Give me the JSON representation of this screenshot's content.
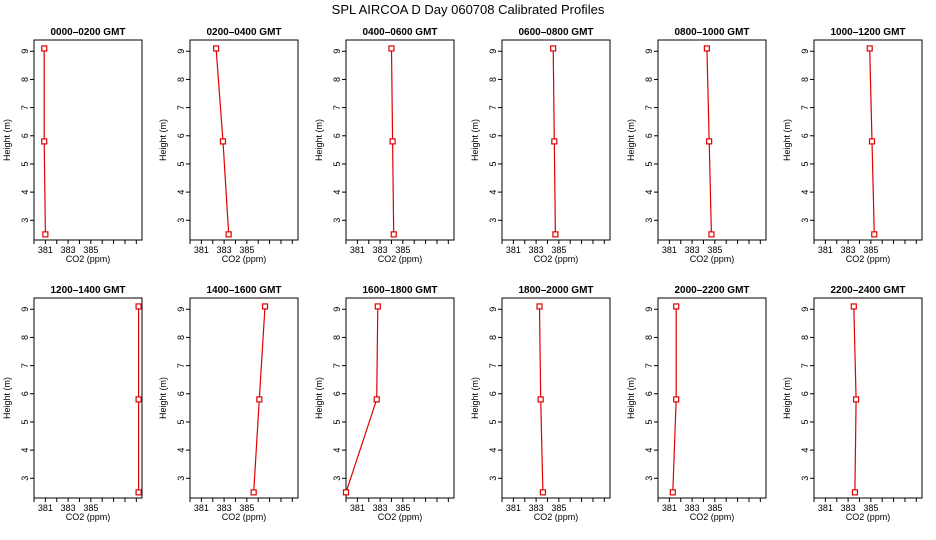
{
  "title": "SPL AIRCOA D  Day 060708  Calibrated Profiles",
  "colors": {
    "series": "#e00000",
    "axis": "#000000",
    "background": "#ffffff"
  },
  "chart_data": [
    {
      "type": "line",
      "title": "0000–0200 GMT",
      "xlabel": "CO2 (ppm)",
      "ylabel": "Height (m)",
      "xlim": [
        380,
        389.5
      ],
      "ylim": [
        2.3,
        9.4
      ],
      "xticks": [
        381,
        383,
        385
      ],
      "yticks": [
        3,
        4,
        5,
        6,
        7,
        8,
        9
      ],
      "grid": false,
      "series": [
        {
          "x": [
            380.9,
            380.9,
            381.0
          ],
          "y": [
            9.1,
            5.8,
            2.5
          ]
        }
      ]
    },
    {
      "type": "line",
      "title": "0200–0400 GMT",
      "xlabel": "CO2 (ppm)",
      "ylabel": "Height (m)",
      "xlim": [
        380,
        389.5
      ],
      "ylim": [
        2.3,
        9.4
      ],
      "xticks": [
        381,
        383,
        385
      ],
      "yticks": [
        3,
        4,
        5,
        6,
        7,
        8,
        9
      ],
      "grid": false,
      "series": [
        {
          "x": [
            382.3,
            382.9,
            383.4
          ],
          "y": [
            9.1,
            5.8,
            2.5
          ]
        }
      ]
    },
    {
      "type": "line",
      "title": "0400–0600 GMT",
      "xlabel": "CO2 (ppm)",
      "ylabel": "Height (m)",
      "xlim": [
        380,
        389.5
      ],
      "ylim": [
        2.3,
        9.4
      ],
      "xticks": [
        381,
        383,
        385
      ],
      "yticks": [
        3,
        4,
        5,
        6,
        7,
        8,
        9
      ],
      "grid": false,
      "series": [
        {
          "x": [
            384.0,
            384.1,
            384.2
          ],
          "y": [
            9.1,
            5.8,
            2.5
          ]
        }
      ]
    },
    {
      "type": "line",
      "title": "0600–0800 GMT",
      "xlabel": "CO2 (ppm)",
      "ylabel": "Height (m)",
      "xlim": [
        380,
        389.5
      ],
      "ylim": [
        2.3,
        9.4
      ],
      "xticks": [
        381,
        383,
        385
      ],
      "yticks": [
        3,
        4,
        5,
        6,
        7,
        8,
        9
      ],
      "grid": false,
      "series": [
        {
          "x": [
            384.5,
            384.6,
            384.7
          ],
          "y": [
            9.1,
            5.8,
            2.5
          ]
        }
      ]
    },
    {
      "type": "line",
      "title": "0800–1000 GMT",
      "xlabel": "CO2 (ppm)",
      "ylabel": "Height (m)",
      "xlim": [
        380,
        389.5
      ],
      "ylim": [
        2.3,
        9.4
      ],
      "xticks": [
        381,
        383,
        385
      ],
      "yticks": [
        3,
        4,
        5,
        6,
        7,
        8,
        9
      ],
      "grid": false,
      "series": [
        {
          "x": [
            384.3,
            384.5,
            384.7
          ],
          "y": [
            9.1,
            5.8,
            2.5
          ]
        }
      ]
    },
    {
      "type": "line",
      "title": "1000–1200 GMT",
      "xlabel": "CO2 (ppm)",
      "ylabel": "Height (m)",
      "xlim": [
        380,
        389.5
      ],
      "ylim": [
        2.3,
        9.4
      ],
      "xticks": [
        381,
        383,
        385
      ],
      "yticks": [
        3,
        4,
        5,
        6,
        7,
        8,
        9
      ],
      "grid": false,
      "series": [
        {
          "x": [
            384.9,
            385.1,
            385.3
          ],
          "y": [
            9.1,
            5.8,
            2.5
          ]
        }
      ]
    },
    {
      "type": "line",
      "title": "1200–1400 GMT",
      "xlabel": "CO2 (ppm)",
      "ylabel": "Height (m)",
      "xlim": [
        380,
        389.5
      ],
      "ylim": [
        2.3,
        9.4
      ],
      "xticks": [
        381,
        383,
        385
      ],
      "yticks": [
        3,
        4,
        5,
        6,
        7,
        8,
        9
      ],
      "grid": false,
      "series": [
        {
          "x": [
            389.2,
            389.2,
            389.2
          ],
          "y": [
            9.1,
            5.8,
            2.5
          ]
        }
      ]
    },
    {
      "type": "line",
      "title": "1400–1600 GMT",
      "xlabel": "CO2 (ppm)",
      "ylabel": "Height (m)",
      "xlim": [
        380,
        389.5
      ],
      "ylim": [
        2.3,
        9.4
      ],
      "xticks": [
        381,
        383,
        385
      ],
      "yticks": [
        3,
        4,
        5,
        6,
        7,
        8,
        9
      ],
      "grid": false,
      "series": [
        {
          "x": [
            386.6,
            386.1,
            385.6
          ],
          "y": [
            9.1,
            5.8,
            2.5
          ]
        }
      ]
    },
    {
      "type": "line",
      "title": "1600–1800 GMT",
      "xlabel": "CO2 (ppm)",
      "ylabel": "Height (m)",
      "xlim": [
        380,
        389.5
      ],
      "ylim": [
        2.3,
        9.4
      ],
      "xticks": [
        381,
        383,
        385
      ],
      "yticks": [
        3,
        4,
        5,
        6,
        7,
        8,
        9
      ],
      "grid": false,
      "series": [
        {
          "x": [
            382.8,
            382.7,
            380.0
          ],
          "y": [
            9.1,
            5.8,
            2.5
          ]
        }
      ]
    },
    {
      "type": "line",
      "title": "1800–2000 GMT",
      "xlabel": "CO2 (ppm)",
      "ylabel": "Height (m)",
      "xlim": [
        380,
        389.5
      ],
      "ylim": [
        2.3,
        9.4
      ],
      "xticks": [
        381,
        383,
        385
      ],
      "yticks": [
        3,
        4,
        5,
        6,
        7,
        8,
        9
      ],
      "grid": false,
      "series": [
        {
          "x": [
            383.3,
            383.4,
            383.6
          ],
          "y": [
            9.1,
            5.8,
            2.5
          ]
        }
      ]
    },
    {
      "type": "line",
      "title": "2000–2200 GMT",
      "xlabel": "CO2 (ppm)",
      "ylabel": "Height (m)",
      "xlim": [
        380,
        389.5
      ],
      "ylim": [
        2.3,
        9.4
      ],
      "xticks": [
        381,
        383,
        385
      ],
      "yticks": [
        3,
        4,
        5,
        6,
        7,
        8,
        9
      ],
      "grid": false,
      "series": [
        {
          "x": [
            381.6,
            381.6,
            381.3
          ],
          "y": [
            9.1,
            5.8,
            2.5
          ]
        }
      ]
    },
    {
      "type": "line",
      "title": "2200–2400 GMT",
      "xlabel": "CO2 (ppm)",
      "ylabel": "Height (m)",
      "xlim": [
        380,
        389.5
      ],
      "ylim": [
        2.3,
        9.4
      ],
      "xticks": [
        381,
        383,
        385
      ],
      "yticks": [
        3,
        4,
        5,
        6,
        7,
        8,
        9
      ],
      "grid": false,
      "series": [
        {
          "x": [
            383.5,
            383.7,
            383.6
          ],
          "y": [
            9.1,
            5.8,
            2.5
          ]
        }
      ]
    }
  ]
}
